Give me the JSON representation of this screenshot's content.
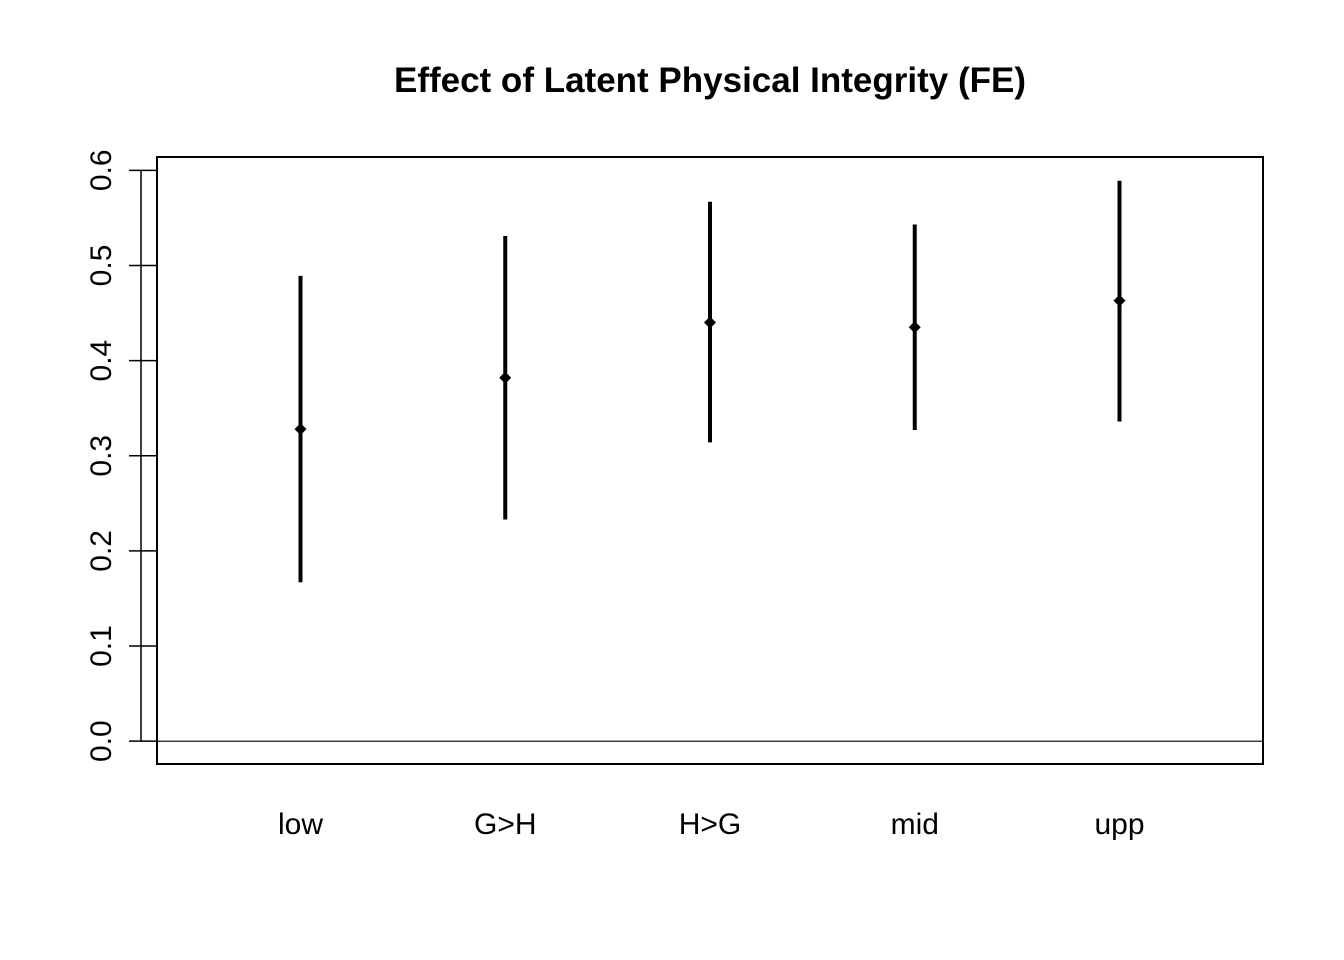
{
  "chart_data": {
    "type": "scatter",
    "title": "Effect of Latent Physical Integrity (FE)",
    "xlabel": "",
    "ylabel": "",
    "categories": [
      "low",
      "G>H",
      "H>G",
      "mid",
      "upp"
    ],
    "estimates": [
      0.328,
      0.382,
      0.44,
      0.435,
      0.463
    ],
    "lower": [
      0.167,
      0.233,
      0.314,
      0.327,
      0.336
    ],
    "upper": [
      0.489,
      0.531,
      0.567,
      0.543,
      0.589
    ],
    "yticks": [
      "0.0",
      "0.1",
      "0.2",
      "0.3",
      "0.4",
      "0.5",
      "0.6"
    ],
    "ylim": [
      -0.024,
      0.614
    ],
    "reference_line": 0.0,
    "grid": false,
    "legend": "none",
    "colors": {
      "marks": "#000000",
      "background": "#ffffff"
    }
  }
}
